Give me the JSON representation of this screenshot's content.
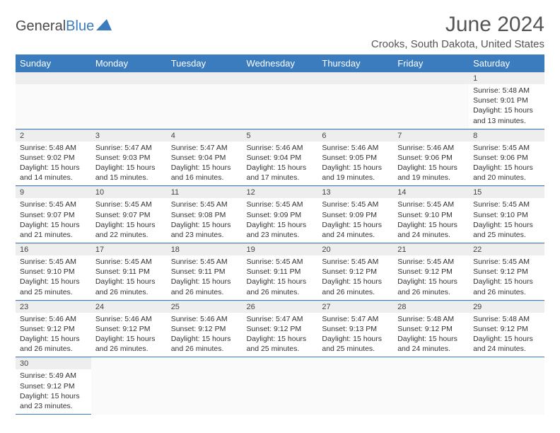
{
  "brand": {
    "part1": "General",
    "part2": "Blue"
  },
  "title": "June 2024",
  "location": "Crooks, South Dakota, United States",
  "weekday_headers": [
    "Sunday",
    "Monday",
    "Tuesday",
    "Wednesday",
    "Thursday",
    "Friday",
    "Saturday"
  ],
  "colors": {
    "header_bg": "#3b7cbf",
    "header_fg": "#ffffff",
    "daynum_bg": "#eeeeee",
    "cell_border": "#3b7cbf",
    "text": "#333333",
    "title_color": "#555555"
  },
  "layout": {
    "first_weekday_index": 6,
    "days_in_month": 30,
    "rows": 6,
    "cols": 7
  },
  "days": {
    "1": {
      "sunrise": "5:48 AM",
      "sunset": "9:01 PM",
      "daylight": "15 hours and 13 minutes."
    },
    "2": {
      "sunrise": "5:48 AM",
      "sunset": "9:02 PM",
      "daylight": "15 hours and 14 minutes."
    },
    "3": {
      "sunrise": "5:47 AM",
      "sunset": "9:03 PM",
      "daylight": "15 hours and 15 minutes."
    },
    "4": {
      "sunrise": "5:47 AM",
      "sunset": "9:04 PM",
      "daylight": "15 hours and 16 minutes."
    },
    "5": {
      "sunrise": "5:46 AM",
      "sunset": "9:04 PM",
      "daylight": "15 hours and 17 minutes."
    },
    "6": {
      "sunrise": "5:46 AM",
      "sunset": "9:05 PM",
      "daylight": "15 hours and 19 minutes."
    },
    "7": {
      "sunrise": "5:46 AM",
      "sunset": "9:06 PM",
      "daylight": "15 hours and 19 minutes."
    },
    "8": {
      "sunrise": "5:45 AM",
      "sunset": "9:06 PM",
      "daylight": "15 hours and 20 minutes."
    },
    "9": {
      "sunrise": "5:45 AM",
      "sunset": "9:07 PM",
      "daylight": "15 hours and 21 minutes."
    },
    "10": {
      "sunrise": "5:45 AM",
      "sunset": "9:07 PM",
      "daylight": "15 hours and 22 minutes."
    },
    "11": {
      "sunrise": "5:45 AM",
      "sunset": "9:08 PM",
      "daylight": "15 hours and 23 minutes."
    },
    "12": {
      "sunrise": "5:45 AM",
      "sunset": "9:09 PM",
      "daylight": "15 hours and 23 minutes."
    },
    "13": {
      "sunrise": "5:45 AM",
      "sunset": "9:09 PM",
      "daylight": "15 hours and 24 minutes."
    },
    "14": {
      "sunrise": "5:45 AM",
      "sunset": "9:10 PM",
      "daylight": "15 hours and 24 minutes."
    },
    "15": {
      "sunrise": "5:45 AM",
      "sunset": "9:10 PM",
      "daylight": "15 hours and 25 minutes."
    },
    "16": {
      "sunrise": "5:45 AM",
      "sunset": "9:10 PM",
      "daylight": "15 hours and 25 minutes."
    },
    "17": {
      "sunrise": "5:45 AM",
      "sunset": "9:11 PM",
      "daylight": "15 hours and 26 minutes."
    },
    "18": {
      "sunrise": "5:45 AM",
      "sunset": "9:11 PM",
      "daylight": "15 hours and 26 minutes."
    },
    "19": {
      "sunrise": "5:45 AM",
      "sunset": "9:11 PM",
      "daylight": "15 hours and 26 minutes."
    },
    "20": {
      "sunrise": "5:45 AM",
      "sunset": "9:12 PM",
      "daylight": "15 hours and 26 minutes."
    },
    "21": {
      "sunrise": "5:45 AM",
      "sunset": "9:12 PM",
      "daylight": "15 hours and 26 minutes."
    },
    "22": {
      "sunrise": "5:45 AM",
      "sunset": "9:12 PM",
      "daylight": "15 hours and 26 minutes."
    },
    "23": {
      "sunrise": "5:46 AM",
      "sunset": "9:12 PM",
      "daylight": "15 hours and 26 minutes."
    },
    "24": {
      "sunrise": "5:46 AM",
      "sunset": "9:12 PM",
      "daylight": "15 hours and 26 minutes."
    },
    "25": {
      "sunrise": "5:46 AM",
      "sunset": "9:12 PM",
      "daylight": "15 hours and 26 minutes."
    },
    "26": {
      "sunrise": "5:47 AM",
      "sunset": "9:12 PM",
      "daylight": "15 hours and 25 minutes."
    },
    "27": {
      "sunrise": "5:47 AM",
      "sunset": "9:13 PM",
      "daylight": "15 hours and 25 minutes."
    },
    "28": {
      "sunrise": "5:48 AM",
      "sunset": "9:12 PM",
      "daylight": "15 hours and 24 minutes."
    },
    "29": {
      "sunrise": "5:48 AM",
      "sunset": "9:12 PM",
      "daylight": "15 hours and 24 minutes."
    },
    "30": {
      "sunrise": "5:49 AM",
      "sunset": "9:12 PM",
      "daylight": "15 hours and 23 minutes."
    }
  },
  "labels": {
    "sunrise_prefix": "Sunrise: ",
    "sunset_prefix": "Sunset: ",
    "daylight_prefix": "Daylight: "
  }
}
